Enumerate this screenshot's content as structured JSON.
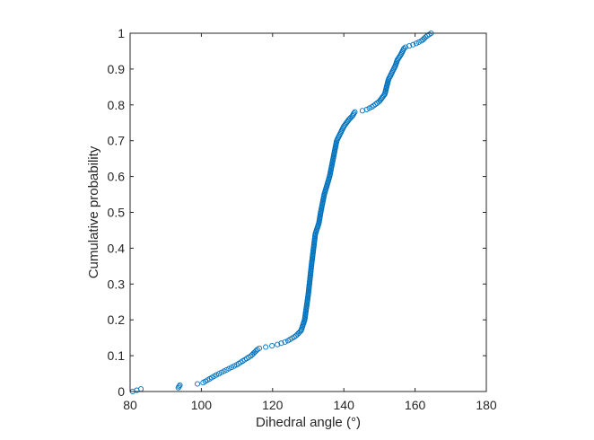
{
  "chart_data": {
    "type": "scatter",
    "xlabel": "Dihedral angle (°)",
    "ylabel": "Cumulative probability",
    "xlim": [
      80,
      180
    ],
    "ylim": [
      0,
      1
    ],
    "xticks": [
      "80",
      "100",
      "120",
      "140",
      "160",
      "180"
    ],
    "yticks": [
      "0",
      "0.1",
      "0.2",
      "0.3",
      "0.4",
      "0.5",
      "0.6",
      "0.7",
      "0.8",
      "0.9",
      "1"
    ],
    "grid": false,
    "marker": "open-circle",
    "marker_color": "#0072BD",
    "curve_knots": {
      "x": [
        80.7,
        84.0,
        93.5,
        94.0,
        100.0,
        104.0,
        110.0,
        114.0,
        116.0,
        121.0,
        124.0,
        126.5,
        128.0,
        129.0,
        130.0,
        131.0,
        132.0,
        133.0,
        133.5,
        134.5,
        136.0,
        137.0,
        138.0,
        140.0,
        141.5,
        142.5,
        143.0,
        146.0,
        148.0,
        150.0,
        151.5,
        152.0,
        152.5,
        153.5,
        154.5,
        155.0,
        156.0,
        157.0,
        160.0,
        162.0,
        162.5,
        163.0,
        164.5
      ],
      "y": [
        0.0,
        0.01,
        0.01,
        0.018,
        0.022,
        0.045,
        0.075,
        0.1,
        0.12,
        0.13,
        0.14,
        0.155,
        0.17,
        0.2,
        0.27,
        0.36,
        0.44,
        0.47,
        0.5,
        0.55,
        0.6,
        0.65,
        0.7,
        0.74,
        0.76,
        0.77,
        0.78,
        0.785,
        0.795,
        0.81,
        0.83,
        0.85,
        0.87,
        0.89,
        0.91,
        0.925,
        0.94,
        0.96,
        0.97,
        0.98,
        0.985,
        0.99,
        1.0
      ]
    },
    "n_points": 283
  },
  "colors": {
    "marker": "#0072BD",
    "axis": "#262626",
    "background": "#ffffff"
  }
}
